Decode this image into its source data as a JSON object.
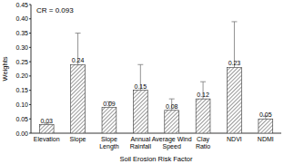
{
  "chart_data": {
    "type": "bar",
    "annotation": "CR = 0.093",
    "x_label": "Soil Erosion Risk Factor",
    "y_label": "Weights",
    "categories": [
      "Elevation",
      "Slope",
      "Slope Length",
      "Annual Rainfall",
      "Average Wind Speed",
      "Clay Ratio",
      "NDVI",
      "NDMI"
    ],
    "values": [
      0.03,
      0.24,
      0.09,
      0.15,
      0.08,
      0.12,
      0.23,
      0.05
    ],
    "errors": [
      0.005,
      0.11,
      0.02,
      0.09,
      0.04,
      0.06,
      0.16,
      0.01
    ],
    "color": "#555555",
    "data_labels": true,
    "grid": false,
    "ylim": [
      0,
      0.45
    ],
    "yticks": [
      {
        "value": 0,
        "label": "0.00"
      },
      {
        "value": 0.05,
        "label": "0.05"
      },
      {
        "value": 0.1,
        "label": "0.10"
      },
      {
        "value": 0.15,
        "label": "0.15"
      },
      {
        "value": 0.2,
        "label": "0.20"
      },
      {
        "value": 0.25,
        "label": "0.25"
      },
      {
        "value": 0.3,
        "label": "0.30"
      },
      {
        "value": 0.35,
        "label": "0.35"
      },
      {
        "value": 0.4,
        "label": "0.40"
      },
      {
        "value": 0.45,
        "label": "0.45"
      }
    ]
  }
}
